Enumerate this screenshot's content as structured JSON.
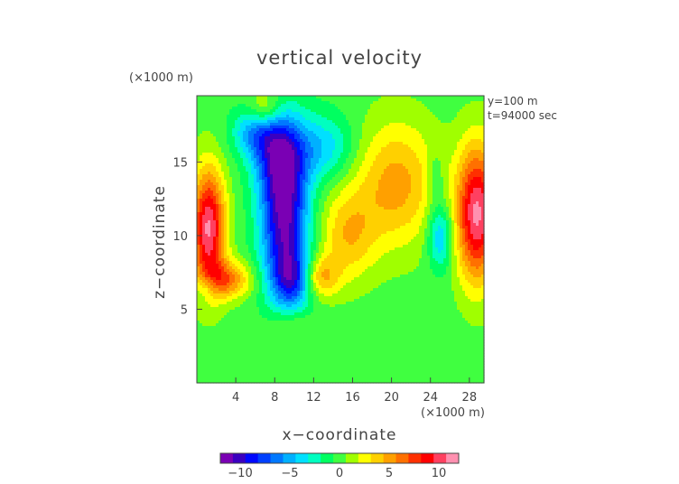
{
  "chart_data": {
    "type": "heatmap",
    "title": "vertical velocity",
    "xlabel": "x−coordinate",
    "ylabel": "z−coordinate",
    "x_unit": "(×1000 m)",
    "y_unit": "(×1000 m)",
    "annotations": [
      "y=100  m",
      "t=94000 sec"
    ],
    "xlim": [
      0,
      29.5
    ],
    "ylim": [
      0,
      19.5
    ],
    "x_ticks": [
      4,
      8,
      12,
      16,
      20,
      24,
      28
    ],
    "y_ticks": [
      5,
      10,
      15
    ],
    "colorbar": {
      "ticks": [
        -10,
        -5,
        0,
        5,
        10
      ],
      "tick_labels": [
        "−10",
        "−5",
        "0",
        "5",
        "10"
      ],
      "range": [
        -12,
        12
      ],
      "colors": [
        "#7a00b4",
        "#3a00c0",
        "#0008ff",
        "#0040ff",
        "#0078ff",
        "#00b0ff",
        "#00e0ff",
        "#00ffc0",
        "#00ff60",
        "#40ff40",
        "#a0ff00",
        "#ffff00",
        "#ffd000",
        "#ffa000",
        "#ff7000",
        "#ff3000",
        "#ff0000",
        "#ff4060",
        "#ff90b0"
      ]
    },
    "features": [
      {
        "x": 9.0,
        "z": 11.0,
        "sx": 1.7,
        "sz": 3.6,
        "value": -11
      },
      {
        "x": 8.5,
        "z": 15.5,
        "sx": 1.8,
        "sz": 2.0,
        "value": -7
      },
      {
        "x": 6.0,
        "z": 17.0,
        "sx": 1.6,
        "sz": 1.2,
        "value": -5
      },
      {
        "x": 13.0,
        "z": 16.0,
        "sx": 2.2,
        "sz": 1.6,
        "value": -4
      },
      {
        "x": 10.0,
        "z": 7.0,
        "sx": 1.4,
        "sz": 1.3,
        "value": -6
      },
      {
        "x": 1.2,
        "z": 10.5,
        "sx": 1.2,
        "sz": 2.8,
        "value": 11
      },
      {
        "x": 3.0,
        "z": 7.0,
        "sx": 1.8,
        "sz": 0.9,
        "value": 6
      },
      {
        "x": 12.5,
        "z": 7.2,
        "sx": 1.4,
        "sz": 1.0,
        "value": 5
      },
      {
        "x": 15.5,
        "z": 10.0,
        "sx": 2.0,
        "sz": 2.2,
        "value": 4
      },
      {
        "x": 20.5,
        "z": 13.5,
        "sx": 3.0,
        "sz": 3.0,
        "value": 5
      },
      {
        "x": 28.8,
        "z": 11.5,
        "sx": 1.5,
        "sz": 3.2,
        "value": 11
      },
      {
        "x": 25.0,
        "z": 10.0,
        "sx": 0.9,
        "sz": 1.6,
        "value": -5
      },
      {
        "x": 24.5,
        "z": 14.0,
        "sx": 0.6,
        "sz": 1.2,
        "value": -2
      },
      {
        "x": 7.0,
        "z": 18.5,
        "sx": 1.2,
        "sz": 0.9,
        "value": 4
      },
      {
        "x": 9.5,
        "z": 4.0,
        "sx": 1.5,
        "sz": 0.8,
        "value": 2
      },
      {
        "x": 1.0,
        "z": 6.5,
        "sx": 0.8,
        "sz": 0.7,
        "value": -3
      }
    ]
  }
}
